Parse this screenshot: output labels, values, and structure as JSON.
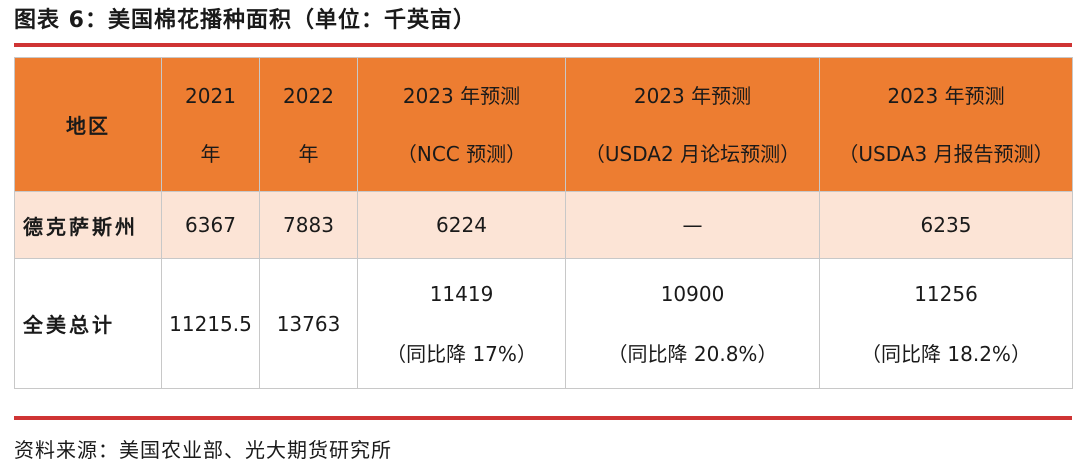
{
  "title": "图表 6：美国棉花播种面积（单位：千英亩）",
  "table": {
    "headers": {
      "region": "地区",
      "y2021_line1": "2021",
      "y2021_line2": "年",
      "y2022_line1": "2022",
      "y2022_line2": "年",
      "ncc_line1": "2023 年预测",
      "ncc_line2": "（NCC 预测）",
      "usda_forum_line1": "2023 年预测",
      "usda_forum_line2": "（USDA2 月论坛预测）",
      "usda_report_line1": "2023 年预测",
      "usda_report_line2": "（USDA3 月报告预测）"
    },
    "rows": [
      {
        "region": "德克萨斯州",
        "y2021": "6367",
        "y2022": "7883",
        "ncc": "6224",
        "usda_forum": "—",
        "usda_report": "6235"
      },
      {
        "region": "全美总计",
        "y2021": "11215.5",
        "y2022": "13763",
        "ncc": "11419",
        "ncc_change": "（同比降 17%）",
        "usda_forum": "10900",
        "usda_forum_change": "（同比降 20.8%）",
        "usda_report": "11256",
        "usda_report_change": "（同比降 18.2%）"
      }
    ]
  },
  "source": "资料来源：美国农业部、光大期货研究所",
  "colors": {
    "header_bg": "#ed7d31",
    "row_highlight_bg": "#fce4d6",
    "rule": "#cf3434"
  }
}
